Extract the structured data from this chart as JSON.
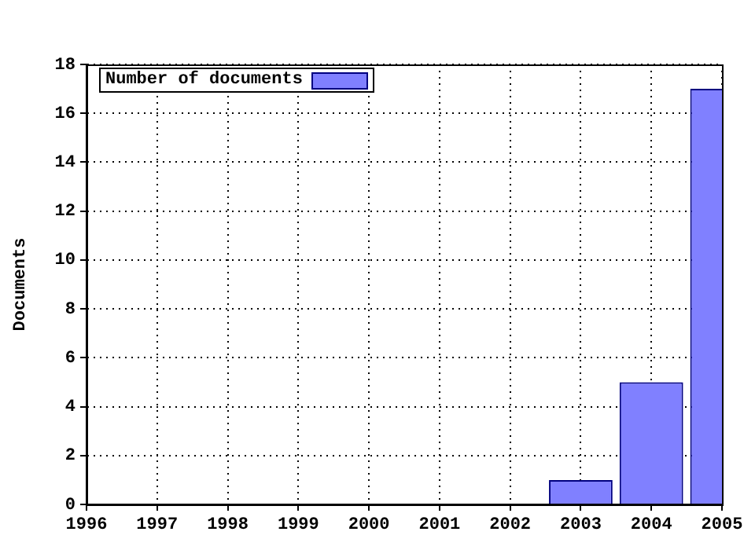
{
  "chart_data": {
    "type": "bar",
    "ylabel": "Documents",
    "x": [
      2003,
      2004,
      2005
    ],
    "series": [
      {
        "name": "Number of documents",
        "color": "#8080ff",
        "values": [
          1,
          5,
          17
        ]
      }
    ],
    "xlim": [
      1996,
      2005
    ],
    "xticks": [
      1996,
      1997,
      1998,
      1999,
      2000,
      2001,
      2002,
      2003,
      2004,
      2005
    ],
    "ylim": [
      0,
      18
    ],
    "yticks": [
      0,
      2,
      4,
      6,
      8,
      10,
      12,
      14,
      16,
      18
    ],
    "grid": true,
    "legend": "top left"
  }
}
